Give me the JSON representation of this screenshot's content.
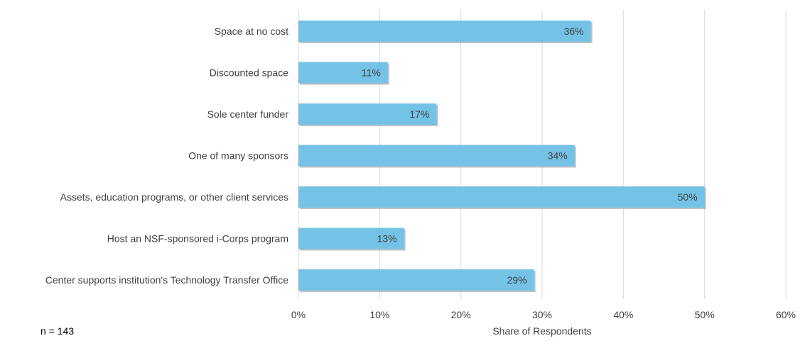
{
  "note": "n = 143",
  "chart_data": {
    "type": "bar",
    "orientation": "horizontal",
    "categories": [
      "Space at no cost",
      "Discounted space",
      "Sole center funder",
      "One of many sponsors",
      "Assets, education programs, or other client services",
      "Host an NSF-sponsored i-Corps program",
      "Center supports institution's Technology Transfer Office"
    ],
    "values": [
      36,
      11,
      17,
      34,
      50,
      13,
      29
    ],
    "data_labels": [
      "36%",
      "11%",
      "17%",
      "34%",
      "50%",
      "13%",
      "29%"
    ],
    "xlabel": "Share of Respondents",
    "ylabel": "",
    "xlim": [
      0,
      60
    ],
    "ticks": [
      0,
      10,
      20,
      30,
      40,
      50,
      60
    ],
    "tick_labels": [
      "0%",
      "10%",
      "20%",
      "30%",
      "40%",
      "50%",
      "60%"
    ],
    "grid": "vertical",
    "legend": "none",
    "colors": {
      "bar": "#74C2E6",
      "bar_shadow": "#9a9a9a",
      "grid": "#d9d9d9",
      "axis_text": "#404040"
    }
  }
}
